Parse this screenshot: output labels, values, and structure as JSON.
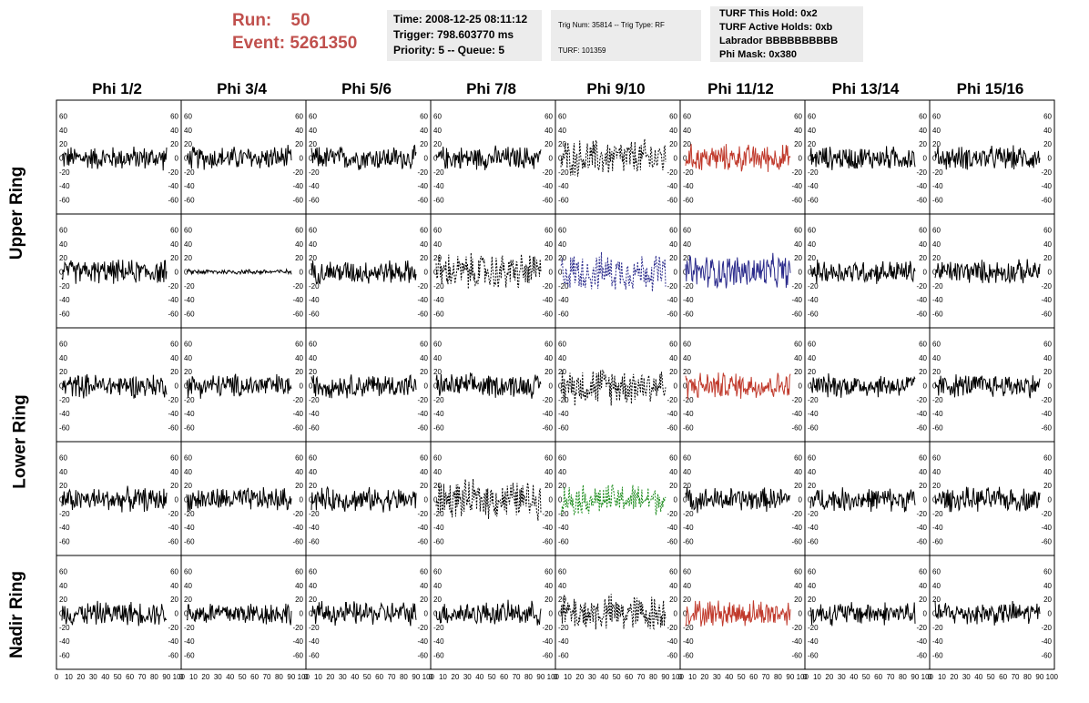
{
  "run": {
    "run_text": "Run:    50",
    "event_text": "Event: 5261350"
  },
  "time_box": {
    "time": "Time: 2008-12-25 08:11:12",
    "trigger": "Trigger: 798.603770 ms",
    "priority": "Priority: 5 -- Queue: 5"
  },
  "trig_box": {
    "trig": "Trig Num: 35814 -- Trig Type: RF",
    "turf": "TURF: 101359"
  },
  "turf_box": {
    "this_hold": "TURF This Hold: 0x2",
    "active_holds": "TURF Active Holds: 0xb",
    "labrador": "Labrador BBBBBBBBBB",
    "phi_mask": "Phi Mask: 0x380"
  },
  "phi_labels": [
    "Phi 1/2",
    "Phi 3/4",
    "Phi 5/6",
    "Phi 7/8",
    "Phi 9/10",
    "Phi 11/12",
    "Phi 13/14",
    "Phi 15/16"
  ],
  "ring_labels": {
    "upper": "Upper Ring",
    "lower": "Lower Ring",
    "nadir": "Nadir Ring"
  },
  "y_ticks": [
    "60",
    "40",
    "20",
    "0",
    "-20",
    "-40",
    "-60"
  ],
  "x_tick_labels": [
    "0",
    "10",
    "20",
    "30",
    "40",
    "50",
    "60",
    "70",
    "80",
    "90",
    "100"
  ],
  "colors": {
    "run": "#c0504d",
    "red_trace": "#c0392b",
    "blue_trace": "#2b2b8c",
    "green_trace": "#1a8a1a",
    "box_bg": "#ececec"
  },
  "panel_styles": [
    [
      "black",
      "black",
      "black",
      "black",
      "dotted-black",
      "red",
      "black",
      "black"
    ],
    [
      "black",
      "black-flat",
      "black",
      "dotted-black",
      "dotted-blue",
      "blue",
      "black",
      "black"
    ],
    [
      "black",
      "black",
      "black",
      "black",
      "dotted-black",
      "red",
      "black",
      "black"
    ],
    [
      "black",
      "black",
      "black",
      "dotted-black",
      "dotted-green",
      "black",
      "black",
      "black"
    ],
    [
      "black",
      "black",
      "black",
      "black",
      "dotted-black",
      "red",
      "black",
      "black"
    ]
  ]
}
